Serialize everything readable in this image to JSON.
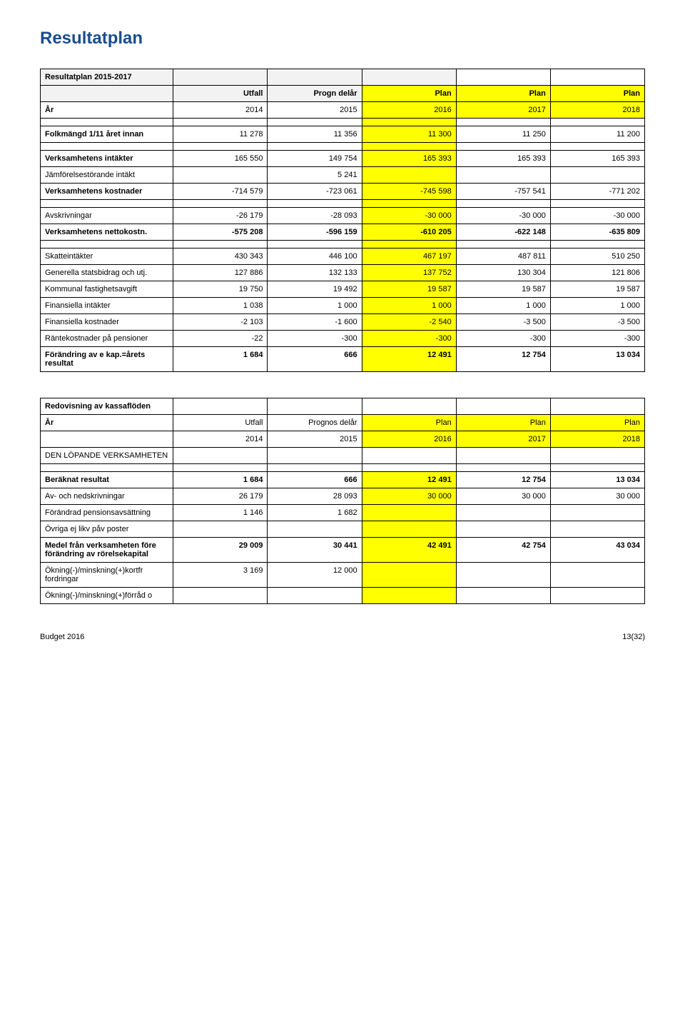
{
  "page_title": "Resultatplan",
  "table1": {
    "title_row": {
      "label": "Resultatplan 2015-2017",
      "shade": true,
      "span": true
    },
    "header_row": {
      "label": "",
      "c1": "Utfall",
      "c2": "Progn delår",
      "c3": "Plan",
      "c4": "Plan",
      "c5": "Plan",
      "bold": true,
      "shade_c1c2": true,
      "yellow_c345": true
    },
    "year_row": {
      "label": "År",
      "c1": "2014",
      "c2": "2015",
      "c3": "2016",
      "c4": "2017",
      "c5": "2018",
      "bold_label": true,
      "yellow_c345": true
    },
    "rows": [
      {
        "label": "Folkmängd 1/11 året innan",
        "c1": "11 278",
        "c2": "11 356",
        "c3": "11 300",
        "c4": "11 250",
        "c5": "11 200",
        "bold_label": true,
        "yellow_c3": true
      },
      {
        "label": "Verksamhetens intäkter",
        "c1": "165 550",
        "c2": "149 754",
        "c3": "165 393",
        "c4": "165 393",
        "c5": "165 393",
        "bold_label": true,
        "yellow_c3": true
      },
      {
        "label": "Jämförelsestörande intäkt",
        "c1": "",
        "c2": "5 241",
        "c3": "",
        "c4": "",
        "c5": "",
        "yellow_c3": true
      },
      {
        "label": "Verksamhetens kostnader",
        "c1": "-714 579",
        "c2": "-723 061",
        "c3": "-745 598",
        "c4": "-757 541",
        "c5": "-771 202",
        "bold_label": true,
        "yellow_c3": true
      },
      {
        "label": "Avskrivningar",
        "c1": "-26 179",
        "c2": "-28 093",
        "c3": "-30 000",
        "c4": "-30 000",
        "c5": "-30 000",
        "yellow_c3": true
      },
      {
        "label": "Verksamhetens nettokostn.",
        "c1": "-575 208",
        "c2": "-596 159",
        "c3": "-610 205",
        "c4": "-622 148",
        "c5": "-635 809",
        "bold": true,
        "yellow_c3": true
      },
      {
        "label": "Skatteintäkter",
        "c1": "430 343",
        "c2": "446 100",
        "c3": "467 197",
        "c4": "487 811",
        "c5": "510 250",
        "yellow_c3": true
      },
      {
        "label": "Generella statsbidrag och utj.",
        "c1": "127 886",
        "c2": "132 133",
        "c3": "137 752",
        "c4": "130 304",
        "c5": "121 806",
        "yellow_c3": true
      },
      {
        "label": "Kommunal fastighetsavgift",
        "c1": "19 750",
        "c2": "19 492",
        "c3": "19 587",
        "c4": "19 587",
        "c5": "19 587",
        "yellow_c3": true
      },
      {
        "label": "Finansiella intäkter",
        "c1": "1 038",
        "c2": "1 000",
        "c3": "1 000",
        "c4": "1 000",
        "c5": "1 000",
        "yellow_c3": true
      },
      {
        "label": "Finansiella kostnader",
        "c1": "-2 103",
        "c2": "-1 600",
        "c3": "-2 540",
        "c4": "-3 500",
        "c5": "-3 500",
        "yellow_c3": true
      },
      {
        "label": "Räntekostnader på pensioner",
        "c1": "-22",
        "c2": "-300",
        "c3": "-300",
        "c4": "-300",
        "c5": "-300",
        "yellow_c3": true
      },
      {
        "label": "Förändring av e kap.=årets resultat",
        "c1": "1 684",
        "c2": "666",
        "c3": "12 491",
        "c4": "12 754",
        "c5": "13 034",
        "bold": true,
        "yellow_c3": true
      }
    ],
    "blank_after": [
      0,
      3,
      5
    ]
  },
  "table2": {
    "title_row": {
      "label": "Redovisning av kassaflöden",
      "bold": true
    },
    "header_row": {
      "label": "År",
      "c1": "Utfall",
      "c2": "Prognos delår",
      "c3": "Plan",
      "c4": "Plan",
      "c5": "Plan",
      "bold_label": true,
      "yellow_c345": true
    },
    "year_row": {
      "label": "",
      "c1": "2014",
      "c2": "2015",
      "c3": "2016",
      "c4": "2017",
      "c5": "2018",
      "yellow_c345": true
    },
    "section_row": {
      "label": "DEN LÖPANDE VERKSAMHETEN"
    },
    "rows": [
      {
        "label": "Beräknat resultat",
        "c1": "1 684",
        "c2": "666",
        "c3": "12 491",
        "c4": "12 754",
        "c5": "13 034",
        "bold": true,
        "yellow_c3": true
      },
      {
        "label": "Av- och nedskrivningar",
        "c1": "26 179",
        "c2": "28 093",
        "c3": "30 000",
        "c4": "30 000",
        "c5": "30 000",
        "yellow_c3": true
      },
      {
        "label": "Förändrad pensionsavsättning",
        "c1": "1 146",
        "c2": "1 682",
        "c3": "",
        "c4": "",
        "c5": "",
        "yellow_c3": true
      },
      {
        "label": "Övriga ej likv påv poster",
        "c1": "",
        "c2": "",
        "c3": "",
        "c4": "",
        "c5": "",
        "yellow_c3": true
      },
      {
        "label": "Medel från verksamheten före förändring av rörelsekapital",
        "c1": "29 009",
        "c2": "30 441",
        "c3": "42 491",
        "c4": "42 754",
        "c5": "43 034",
        "bold": true,
        "yellow_c3": true
      },
      {
        "label": "Ökning(-)/minskning(+)kortfr fordringar",
        "c1": "3 169",
        "c2": "12 000",
        "c3": "",
        "c4": "",
        "c5": "",
        "yellow_c3": true
      },
      {
        "label": "Ökning(-)/minskning(+)förråd o",
        "c1": "",
        "c2": "",
        "c3": "",
        "c4": "",
        "c5": "",
        "yellow_c3": true
      }
    ]
  },
  "footer": {
    "left": "Budget 2016",
    "right": "13(32)"
  }
}
